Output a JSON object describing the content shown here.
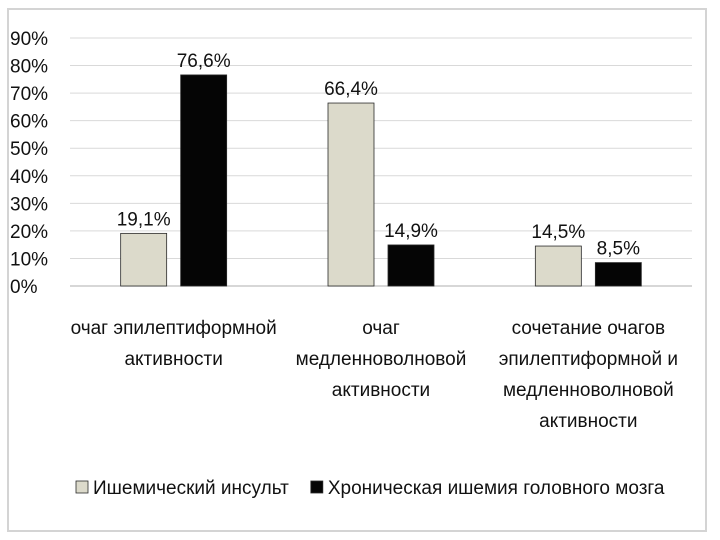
{
  "chart_data": {
    "type": "bar",
    "categories": [
      [
        "очаг эпилептиформной",
        "активности"
      ],
      [
        "очаг",
        "медленноволновой",
        "активности"
      ],
      [
        "сочетание очагов",
        "эпилептиформной и",
        "медленноволновой",
        "активности"
      ]
    ],
    "series": [
      {
        "name": "Ишемический инсульт",
        "color": "#dcdacb",
        "values": [
          19.1,
          66.4,
          14.5
        ],
        "labels": [
          "19,1%",
          "66,4%",
          "14,5%"
        ]
      },
      {
        "name": "Хроническая ишемия головного мозга",
        "color": "#050505",
        "values": [
          76.6,
          14.9,
          8.5
        ],
        "labels": [
          "76,6%",
          "14,9%",
          "8,5%"
        ]
      }
    ],
    "y_ticks": [
      "0%",
      "10%",
      "20%",
      "30%",
      "40%",
      "50%",
      "60%",
      "70%",
      "80%",
      "90%"
    ],
    "ylim": [
      0,
      90
    ],
    "grid": true,
    "legend": "bottom",
    "title": "",
    "xlabel": "",
    "ylabel": ""
  }
}
